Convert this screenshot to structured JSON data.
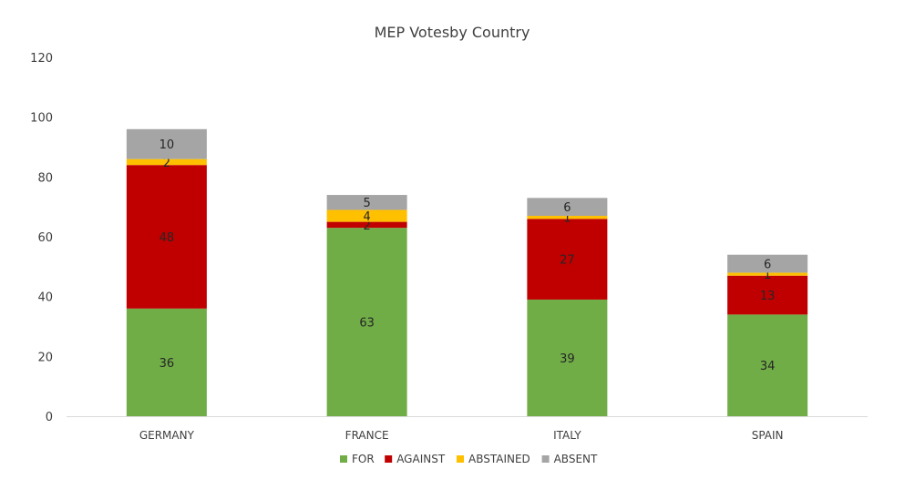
{
  "chart_data": {
    "type": "bar",
    "stacked": true,
    "title": "MEP Votesby Country",
    "xlabel": "",
    "ylabel": "",
    "categories": [
      "GERMANY",
      "FRANCE",
      "ITALY",
      "SPAIN"
    ],
    "series": [
      {
        "name": "FOR",
        "color": "#70ad47",
        "values": [
          36,
          63,
          39,
          34
        ]
      },
      {
        "name": "AGAINST",
        "color": "#c00000",
        "values": [
          48,
          2,
          27,
          13
        ]
      },
      {
        "name": "ABSTAINED",
        "color": "#ffc000",
        "values": [
          2,
          4,
          1,
          1
        ]
      },
      {
        "name": "ABSENT",
        "color": "#a5a5a5",
        "values": [
          10,
          5,
          6,
          6
        ]
      }
    ],
    "ylim": [
      0,
      120
    ],
    "yticks": [
      0,
      20,
      40,
      60,
      80,
      100,
      120
    ],
    "grid": false,
    "legend": "bottom-center"
  }
}
